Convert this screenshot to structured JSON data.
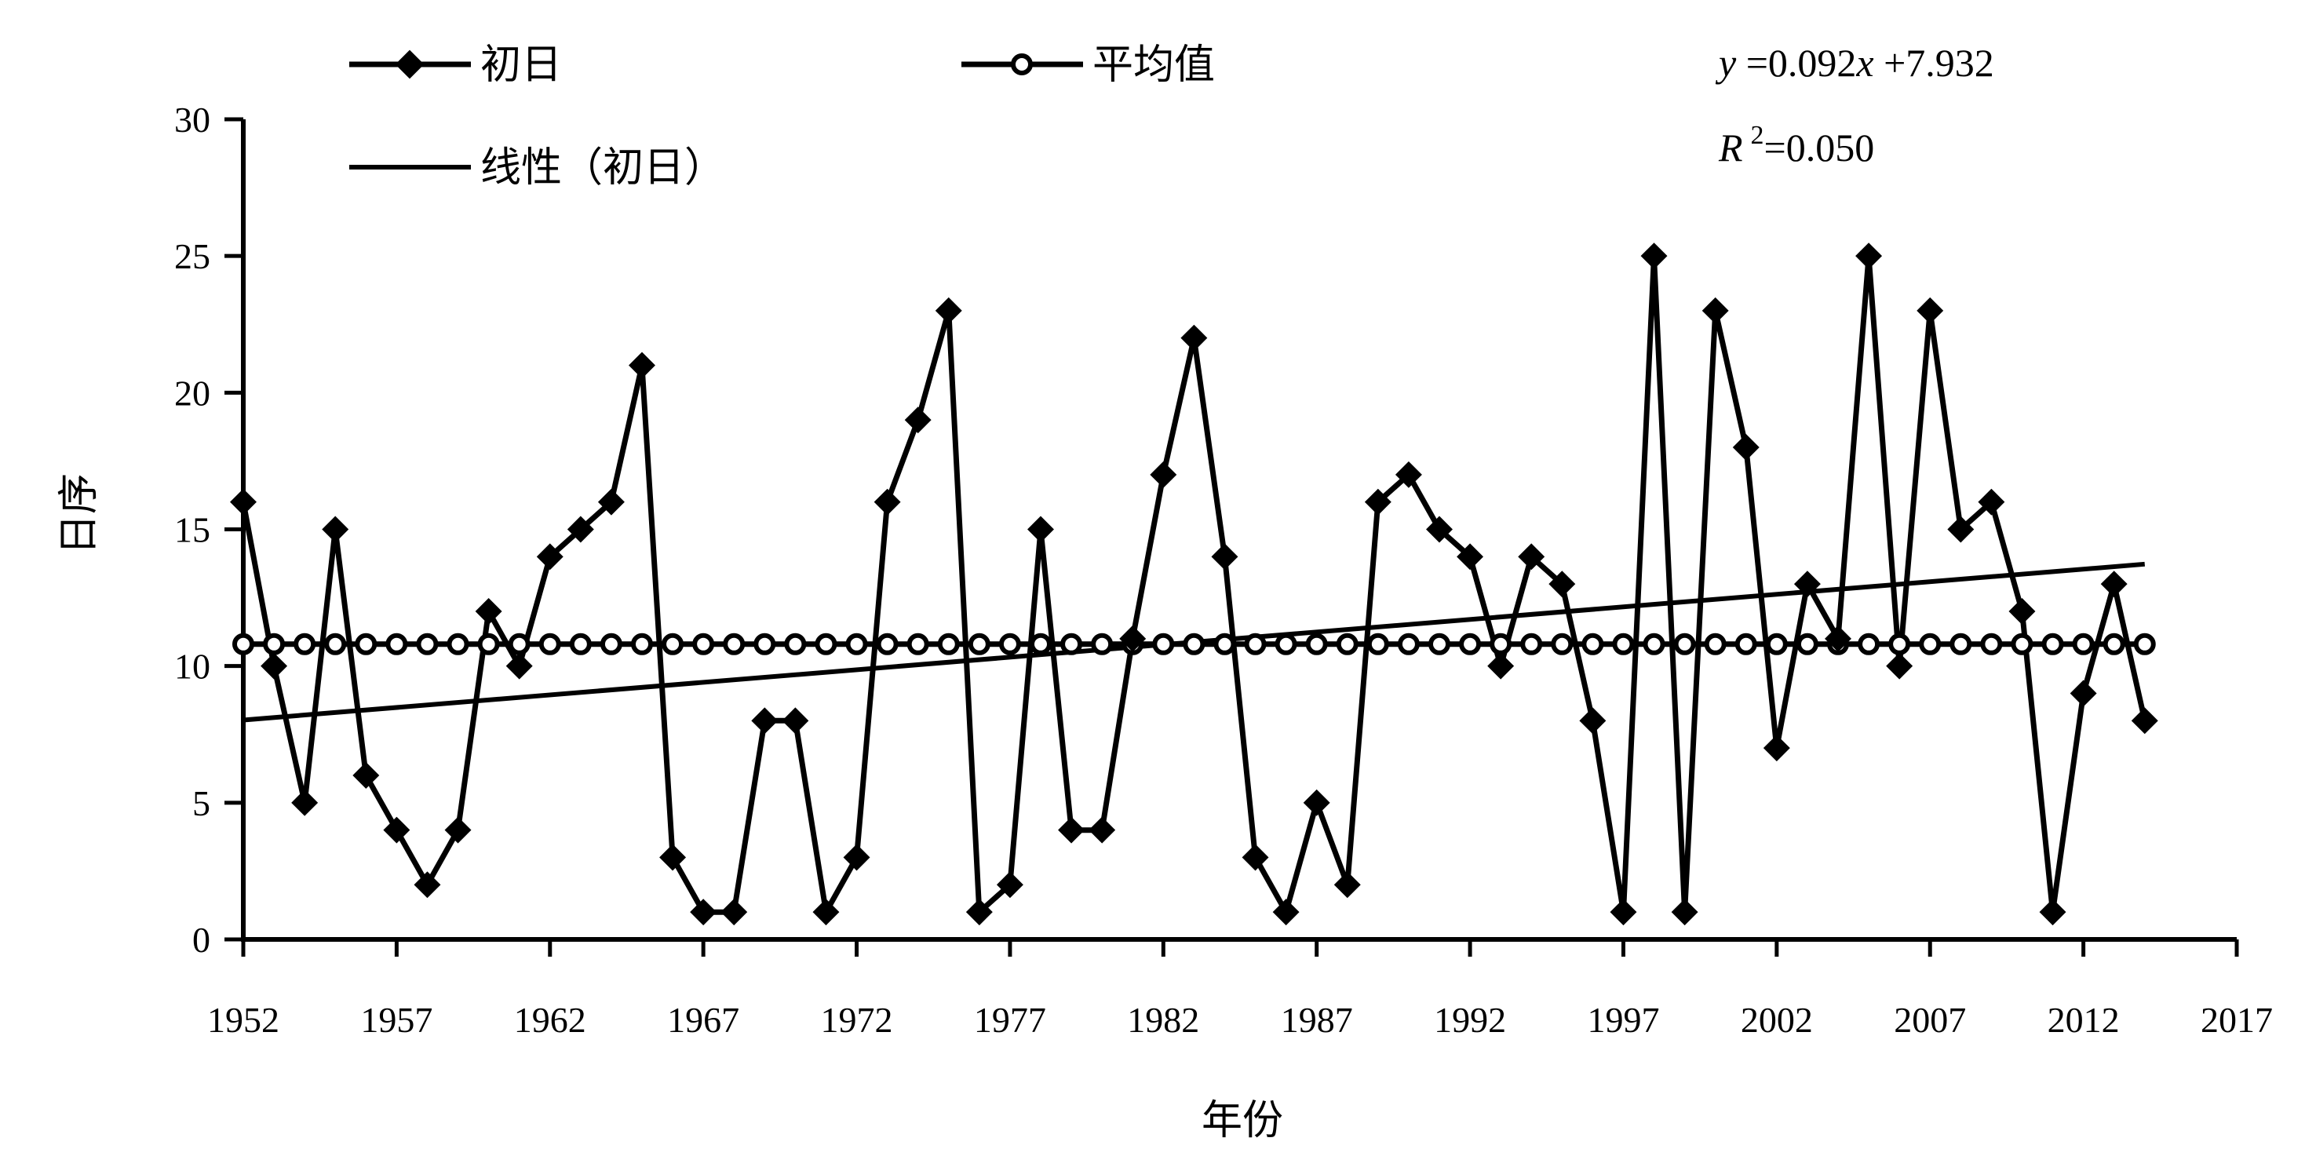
{
  "chart_data": {
    "type": "line",
    "xlabel": "年份",
    "ylabel": "日序",
    "xlim": [
      1952,
      2017
    ],
    "ylim": [
      0,
      30
    ],
    "xticks": [
      "1952",
      "1957",
      "1962",
      "1967",
      "1972",
      "1977",
      "1982",
      "1987",
      "1992",
      "1997",
      "2002",
      "2007",
      "2012",
      "2017"
    ],
    "yticks": [
      "0",
      "5",
      "10",
      "15",
      "20",
      "25",
      "30"
    ],
    "grid": false,
    "legend_position": "top",
    "x": [
      1952,
      1953,
      1954,
      1955,
      1956,
      1957,
      1958,
      1959,
      1960,
      1961,
      1962,
      1963,
      1964,
      1965,
      1966,
      1967,
      1968,
      1969,
      1970,
      1971,
      1972,
      1973,
      1974,
      1975,
      1976,
      1977,
      1978,
      1979,
      1980,
      1981,
      1982,
      1983,
      1984,
      1985,
      1986,
      1987,
      1988,
      1989,
      1990,
      1991,
      1992,
      1993,
      1994,
      1995,
      1996,
      1997,
      1998,
      1999,
      2000,
      2001,
      2002,
      2003,
      2004,
      2005,
      2006,
      2007,
      2008,
      2009,
      2010,
      2011,
      2012,
      2013,
      2014
    ],
    "series": [
      {
        "name": "初日",
        "marker": "filled-diamond",
        "values": [
          16,
          10,
          5,
          15,
          6,
          4,
          2,
          4,
          12,
          10,
          14,
          15,
          16,
          21,
          3,
          1,
          1,
          8,
          8,
          1,
          3,
          16,
          19,
          23,
          1,
          2,
          15,
          4,
          4,
          11,
          17,
          22,
          14,
          3,
          1,
          5,
          2,
          16,
          17,
          15,
          14,
          10,
          14,
          13,
          8,
          1,
          25,
          1,
          23,
          18,
          7,
          13,
          11,
          25,
          10,
          23,
          15,
          16,
          12,
          1,
          9,
          13,
          8
        ]
      },
      {
        "name": "平均值",
        "marker": "open-circle",
        "constant": 10.8
      },
      {
        "name": "线性（初日）",
        "marker": "none",
        "trend": {
          "slope": 0.092,
          "intercept": 7.932
        }
      }
    ],
    "equation": {
      "y_var": "y",
      "y_rest": " =0.092",
      "x_var": "x",
      "x_rest": " +7.932",
      "r_var": "R",
      "r_sup": "2",
      "r_rest": "=0.050"
    }
  }
}
